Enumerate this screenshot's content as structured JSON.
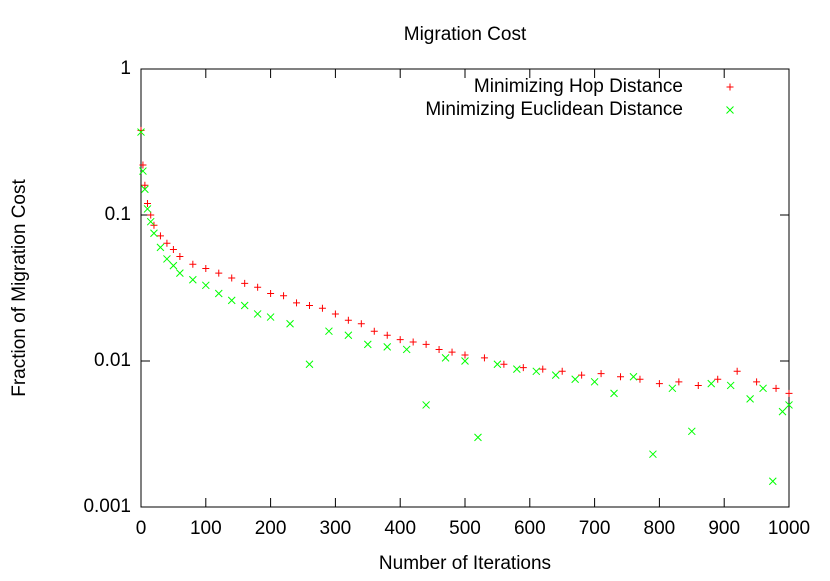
{
  "chart_data": {
    "type": "scatter",
    "title": "Migration Cost",
    "x_label": "Number of Iterations",
    "y_label": "Fraction of Migration Cost",
    "xlim": [
      0,
      1000
    ],
    "xticks": [
      0,
      100,
      200,
      300,
      400,
      500,
      600,
      700,
      800,
      900,
      1000
    ],
    "ylim": [
      0.001,
      1
    ],
    "yticks": [
      0.001,
      0.01,
      0.1,
      1
    ],
    "log_y": true,
    "legend": "upper right",
    "series": [
      {
        "name": "Minimizing Hop Distance",
        "color": "#ff0000",
        "marker": "+",
        "x": [
          0,
          3,
          6,
          10,
          15,
          20,
          30,
          40,
          50,
          60,
          80,
          100,
          120,
          140,
          160,
          180,
          200,
          220,
          240,
          260,
          280,
          300,
          320,
          340,
          360,
          380,
          400,
          420,
          440,
          460,
          480,
          500,
          530,
          560,
          590,
          620,
          650,
          680,
          710,
          740,
          770,
          800,
          830,
          860,
          890,
          920,
          950,
          980,
          1000
        ],
        "values": [
          0.38,
          0.22,
          0.16,
          0.12,
          0.1,
          0.085,
          0.072,
          0.064,
          0.058,
          0.052,
          0.046,
          0.043,
          0.04,
          0.037,
          0.034,
          0.032,
          0.029,
          0.028,
          0.025,
          0.024,
          0.023,
          0.021,
          0.019,
          0.018,
          0.016,
          0.015,
          0.014,
          0.0135,
          0.013,
          0.012,
          0.0115,
          0.011,
          0.0105,
          0.0095,
          0.009,
          0.0088,
          0.0085,
          0.008,
          0.0082,
          0.0078,
          0.0075,
          0.007,
          0.0072,
          0.0068,
          0.0075,
          0.0085,
          0.0072,
          0.0065,
          0.006
        ]
      },
      {
        "name": "Minimizing Euclidean Distance",
        "color": "#00ff00",
        "marker": "x",
        "x": [
          0,
          3,
          6,
          10,
          15,
          20,
          30,
          40,
          50,
          60,
          80,
          100,
          120,
          140,
          160,
          180,
          200,
          230,
          260,
          290,
          320,
          350,
          380,
          410,
          440,
          470,
          500,
          520,
          550,
          580,
          610,
          640,
          670,
          700,
          730,
          760,
          790,
          820,
          850,
          880,
          910,
          940,
          960,
          975,
          990,
          1000
        ],
        "values": [
          0.37,
          0.2,
          0.15,
          0.11,
          0.09,
          0.075,
          0.06,
          0.05,
          0.045,
          0.04,
          0.036,
          0.033,
          0.029,
          0.026,
          0.024,
          0.021,
          0.02,
          0.018,
          0.0095,
          0.016,
          0.015,
          0.013,
          0.0125,
          0.012,
          0.005,
          0.0105,
          0.01,
          0.003,
          0.0095,
          0.0088,
          0.0085,
          0.008,
          0.0075,
          0.0072,
          0.006,
          0.0078,
          0.0023,
          0.0065,
          0.0033,
          0.007,
          0.0068,
          0.0055,
          0.0065,
          0.0015,
          0.0045,
          0.005
        ]
      }
    ]
  }
}
